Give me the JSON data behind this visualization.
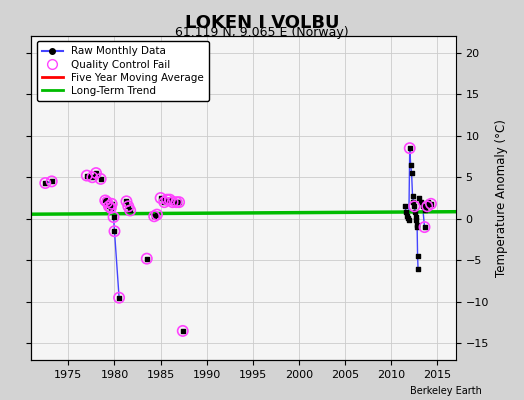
{
  "title": "LOKEN I VOLBU",
  "subtitle": "61.119 N, 9.065 E (Norway)",
  "ylabel": "Temperature Anomaly (°C)",
  "watermark": "Berkeley Earth",
  "ylim": [
    -17,
    22
  ],
  "xlim": [
    1971,
    2017
  ],
  "yticks": [
    -15,
    -10,
    -5,
    0,
    5,
    10,
    15,
    20
  ],
  "xticks": [
    1975,
    1980,
    1985,
    1990,
    1995,
    2000,
    2005,
    2010,
    2015
  ],
  "bg_color": "#d3d3d3",
  "plot_bg_color": "#f5f5f5",
  "raw_line_color": "#4444ff",
  "raw_dot_color": "#000000",
  "qc_fail_color": "#ff44ff",
  "moving_avg_color": "#ff0000",
  "trend_color": "#00bb00",
  "segments": [
    [
      [
        1972.5,
        4.3
      ],
      [
        1973.2,
        4.5
      ]
    ],
    [
      [
        1977.0,
        5.2
      ],
      [
        1977.6,
        5.0
      ]
    ],
    [
      [
        1978.0,
        5.5
      ],
      [
        1978.5,
        4.8
      ]
    ],
    [
      [
        1979.0,
        2.2
      ],
      [
        1979.2,
        2.0
      ],
      [
        1979.4,
        1.5
      ],
      [
        1979.6,
        1.3
      ],
      [
        1979.7,
        1.8
      ],
      [
        1979.9,
        0.2
      ],
      [
        1980.0,
        -1.5
      ],
      [
        1980.5,
        -9.5
      ]
    ],
    [
      [
        1981.3,
        2.1
      ],
      [
        1981.5,
        1.5
      ],
      [
        1981.7,
        1.0
      ]
    ],
    [
      [
        1983.5,
        -4.8
      ]
    ],
    [
      [
        1984.3,
        0.3
      ],
      [
        1984.6,
        0.5
      ]
    ],
    [
      [
        1985.0,
        2.5
      ],
      [
        1985.4,
        2.0
      ]
    ],
    [
      [
        1985.7,
        2.3
      ],
      [
        1986.0,
        2.3
      ],
      [
        1986.3,
        2.0
      ]
    ],
    [
      [
        1986.7,
        2.0
      ],
      [
        1987.0,
        2.0
      ]
    ],
    [
      [
        1987.4,
        -13.5
      ]
    ],
    [
      [
        2011.5,
        1.5
      ],
      [
        2011.6,
        0.8
      ],
      [
        2011.7,
        0.3
      ],
      [
        2011.8,
        0.1
      ],
      [
        2011.9,
        -0.2
      ],
      [
        2012.0,
        8.5
      ],
      [
        2012.1,
        6.5
      ],
      [
        2012.2,
        5.5
      ],
      [
        2012.3,
        2.8
      ],
      [
        2012.4,
        2.0
      ],
      [
        2012.5,
        1.5
      ],
      [
        2012.6,
        0.8
      ],
      [
        2012.65,
        0.2
      ],
      [
        2012.7,
        -0.2
      ],
      [
        2012.75,
        -0.8
      ],
      [
        2012.8,
        -1.0
      ],
      [
        2012.85,
        -4.5
      ],
      [
        2012.9,
        -6.0
      ]
    ],
    [
      [
        2013.0,
        2.5
      ],
      [
        2013.2,
        2.0
      ],
      [
        2013.4,
        1.5
      ],
      [
        2013.6,
        -1.0
      ]
    ],
    [
      [
        2013.7,
        1.0
      ],
      [
        2013.9,
        1.5
      ],
      [
        2014.0,
        2.0
      ],
      [
        2014.3,
        1.8
      ]
    ]
  ],
  "all_dots": [
    [
      1972.5,
      4.3
    ],
    [
      1973.2,
      4.5
    ],
    [
      1977.0,
      5.2
    ],
    [
      1977.6,
      5.0
    ],
    [
      1978.0,
      5.5
    ],
    [
      1978.5,
      4.8
    ],
    [
      1979.0,
      2.2
    ],
    [
      1979.2,
      2.0
    ],
    [
      1979.4,
      1.5
    ],
    [
      1979.6,
      1.3
    ],
    [
      1979.7,
      1.8
    ],
    [
      1979.9,
      0.2
    ],
    [
      1980.0,
      -1.5
    ],
    [
      1980.5,
      -9.5
    ],
    [
      1981.3,
      2.1
    ],
    [
      1981.5,
      1.5
    ],
    [
      1981.7,
      1.0
    ],
    [
      1983.5,
      -4.8
    ],
    [
      1984.3,
      0.3
    ],
    [
      1984.6,
      0.5
    ],
    [
      1985.0,
      2.5
    ],
    [
      1985.4,
      2.0
    ],
    [
      1985.7,
      2.3
    ],
    [
      1986.0,
      2.3
    ],
    [
      1986.3,
      2.0
    ],
    [
      1986.7,
      2.0
    ],
    [
      1987.0,
      2.0
    ],
    [
      1987.4,
      -13.5
    ],
    [
      2011.5,
      1.5
    ],
    [
      2011.6,
      0.8
    ],
    [
      2011.7,
      0.3
    ],
    [
      2011.8,
      0.1
    ],
    [
      2011.9,
      -0.2
    ],
    [
      2012.0,
      8.5
    ],
    [
      2012.1,
      6.5
    ],
    [
      2012.2,
      5.5
    ],
    [
      2012.3,
      2.8
    ],
    [
      2012.4,
      2.0
    ],
    [
      2012.5,
      1.5
    ],
    [
      2012.6,
      0.8
    ],
    [
      2012.65,
      0.2
    ],
    [
      2012.7,
      -0.2
    ],
    [
      2012.75,
      -0.8
    ],
    [
      2012.8,
      -1.0
    ],
    [
      2012.85,
      -4.5
    ],
    [
      2012.9,
      -6.0
    ],
    [
      2013.0,
      2.5
    ],
    [
      2013.2,
      2.0
    ],
    [
      2013.4,
      1.5
    ],
    [
      2013.6,
      -1.0
    ],
    [
      2013.7,
      1.0
    ],
    [
      2013.9,
      1.5
    ],
    [
      2014.0,
      2.0
    ],
    [
      2014.3,
      1.8
    ]
  ],
  "qc_fail_dots": [
    [
      1972.5,
      4.3
    ],
    [
      1973.2,
      4.5
    ],
    [
      1977.0,
      5.2
    ],
    [
      1977.6,
      5.0
    ],
    [
      1978.0,
      5.5
    ],
    [
      1978.5,
      4.8
    ],
    [
      1979.0,
      2.2
    ],
    [
      1979.2,
      2.0
    ],
    [
      1979.4,
      1.5
    ],
    [
      1979.6,
      1.3
    ],
    [
      1979.7,
      1.8
    ],
    [
      1979.9,
      0.2
    ],
    [
      1980.0,
      -1.5
    ],
    [
      1980.5,
      -9.5
    ],
    [
      1981.3,
      2.1
    ],
    [
      1981.5,
      1.5
    ],
    [
      1981.7,
      1.0
    ],
    [
      1983.5,
      -4.8
    ],
    [
      1984.3,
      0.3
    ],
    [
      1984.6,
      0.5
    ],
    [
      1985.0,
      2.5
    ],
    [
      1985.4,
      2.0
    ],
    [
      1985.7,
      2.3
    ],
    [
      1986.0,
      2.3
    ],
    [
      1986.3,
      2.0
    ],
    [
      1986.7,
      2.0
    ],
    [
      1987.0,
      2.0
    ],
    [
      1987.4,
      -13.5
    ],
    [
      2012.0,
      8.5
    ],
    [
      2012.5,
      1.5
    ],
    [
      2013.6,
      -1.0
    ],
    [
      2013.9,
      1.5
    ],
    [
      2014.3,
      1.8
    ]
  ],
  "trend_line": [
    [
      1971,
      0.55
    ],
    [
      2017,
      0.85
    ]
  ],
  "legend_entries": [
    "Raw Monthly Data",
    "Quality Control Fail",
    "Five Year Moving Average",
    "Long-Term Trend"
  ]
}
